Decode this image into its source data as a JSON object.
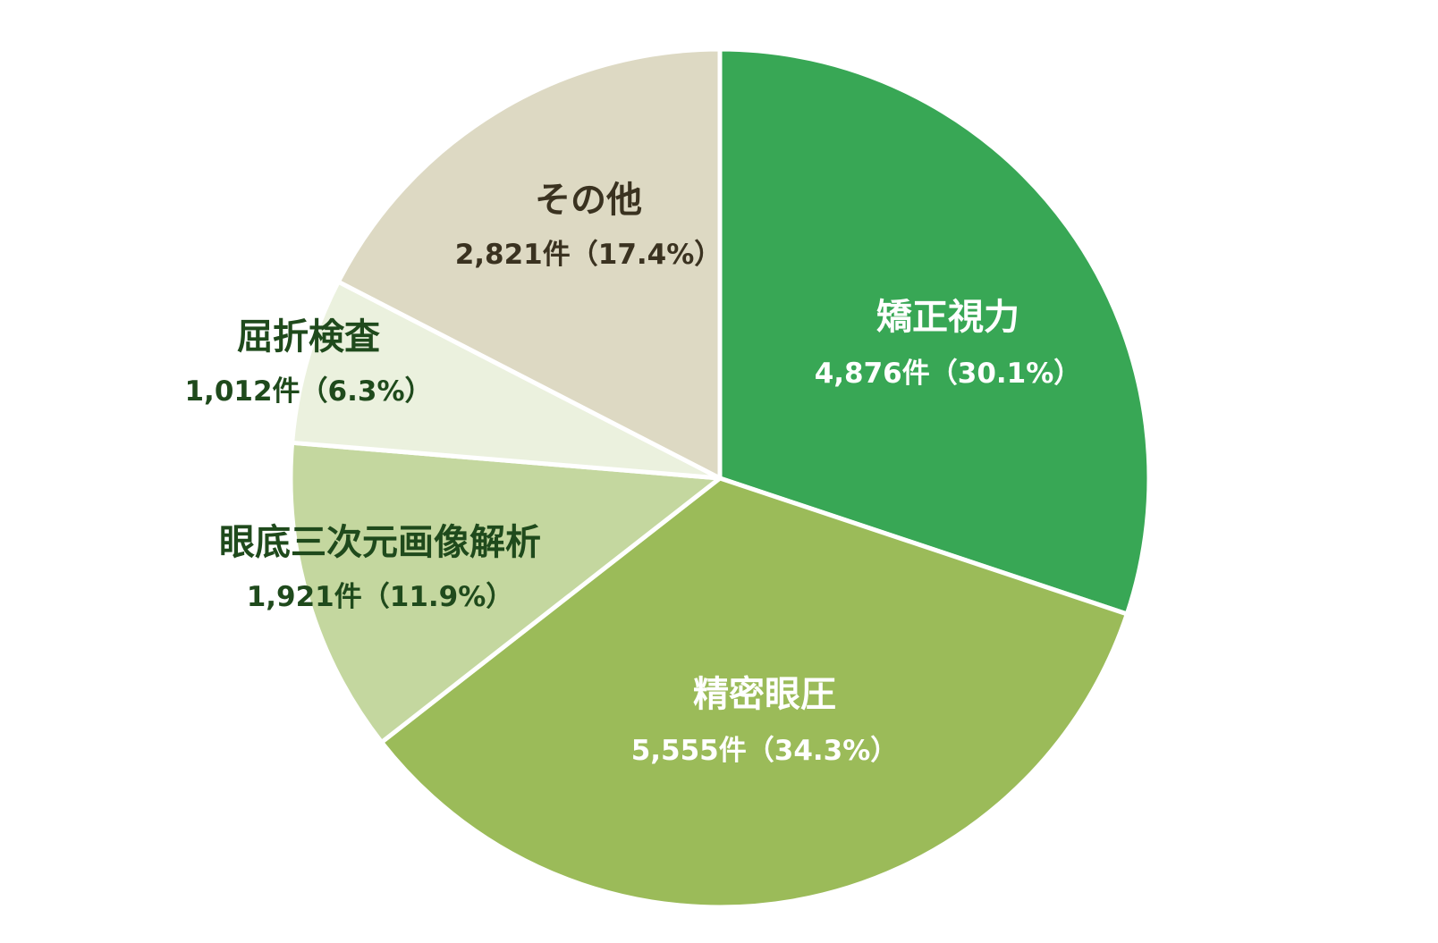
{
  "chart_data": {
    "type": "pie",
    "title": "",
    "start_angle_deg": 0,
    "direction": "clockwise",
    "slices": [
      {
        "label": "矯正視力",
        "count_text": "4,876件（30.1%）",
        "count": 4876,
        "percent": 30.1,
        "color": "#38a755",
        "text_color": "#ffffff"
      },
      {
        "label": "精密眼圧",
        "count_text": "5,555件（34.3%）",
        "count": 5555,
        "percent": 34.3,
        "color": "#9bbb59",
        "text_color": "#ffffff"
      },
      {
        "label": "眼底三次元画像解析",
        "count_text": "1,921件（11.9%）",
        "count": 1921,
        "percent": 11.9,
        "color": "#c4d79f",
        "text_color": "#1f4a1c"
      },
      {
        "label": "屈折検査",
        "count_text": "1,012件（6.3%）",
        "count": 1012,
        "percent": 6.3,
        "color": "#ebf1de",
        "text_color": "#1f4a1c"
      },
      {
        "label": "その他",
        "count_text": "2,821件（17.4%）",
        "count": 2821,
        "percent": 17.4,
        "color": "#ddd9c3",
        "text_color": "#3a3220"
      }
    ]
  }
}
